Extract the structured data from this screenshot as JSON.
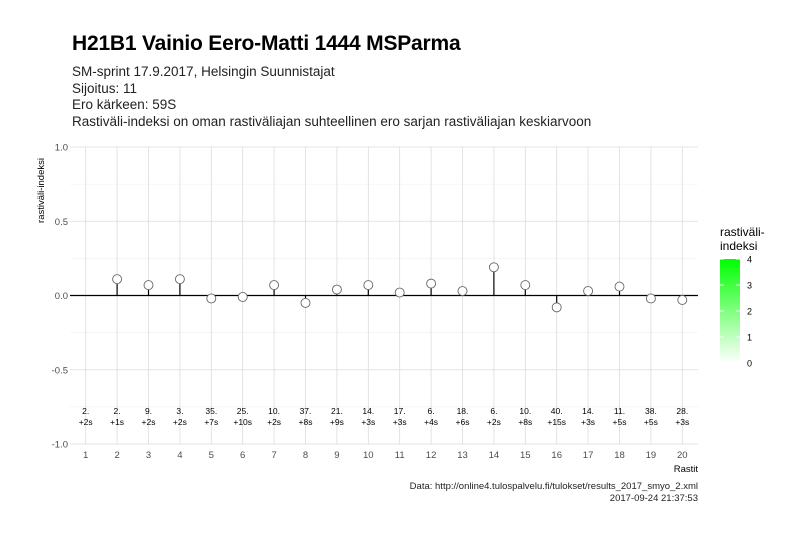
{
  "title": "H21B1 Vainio Eero-Matti 1444 MSParma",
  "subtitle_lines": [
    "SM-sprint 17.9.2017, Helsingin Suunnistajat",
    "Sijoitus: 11",
    "Ero kärkeen: 59S",
    "Rastiväli-indeksi on oman rastiväliajan suhteellinen ero sarjan rastiväliajan keskiarvoon"
  ],
  "caption": {
    "source": "Data: http://online4.tulospalvelu.fi/tulokset/results_2017_smyo_2.xml",
    "timestamp": "2017-09-24 21:37:53"
  },
  "chart_data": {
    "type": "scatter",
    "style": "lollipop",
    "xlabel": "Rastit",
    "ylabel": "rastiväli-indeksi",
    "x": [
      1,
      2,
      3,
      4,
      5,
      6,
      7,
      8,
      9,
      10,
      11,
      12,
      13,
      14,
      15,
      16,
      17,
      18,
      19,
      20
    ],
    "values": [
      null,
      0.11,
      0.07,
      0.11,
      -0.02,
      -0.01,
      0.07,
      -0.05,
      0.04,
      0.07,
      0.02,
      0.08,
      0.03,
      0.19,
      0.07,
      -0.08,
      0.03,
      0.06,
      -0.02,
      -0.03
    ],
    "point_labels": [
      [
        "2.",
        "+2s"
      ],
      [
        "2.",
        "+1s"
      ],
      [
        "9.",
        "+2s"
      ],
      [
        "3.",
        "+2s"
      ],
      [
        "35.",
        "+7s"
      ],
      [
        "25.",
        "+10s"
      ],
      [
        "10.",
        "+2s"
      ],
      [
        "37.",
        "+8s"
      ],
      [
        "21.",
        "+9s"
      ],
      [
        "14.",
        "+3s"
      ],
      [
        "17.",
        "+3s"
      ],
      [
        "6.",
        "+4s"
      ],
      [
        "18.",
        "+6s"
      ],
      [
        "6.",
        "+2s"
      ],
      [
        "10.",
        "+8s"
      ],
      [
        "40.",
        "+15s"
      ],
      [
        "14.",
        "+3s"
      ],
      [
        "11.",
        "+5s"
      ],
      [
        "38.",
        "+5s"
      ],
      [
        "28.",
        "+3s"
      ]
    ],
    "ylim": [
      -1.0,
      1.0
    ],
    "xlim": [
      0.5,
      20.5
    ],
    "yticks": [
      1.0,
      0.5,
      0.0,
      -0.5,
      -1.0
    ],
    "ytick_labels": [
      "1.0",
      "0.5",
      "0.0",
      "-0.5",
      "-1.0"
    ],
    "xtick_labels": [
      "1",
      "2",
      "3",
      "4",
      "5",
      "6",
      "7",
      "8",
      "9",
      "10",
      "11",
      "12",
      "13",
      "14",
      "15",
      "16",
      "17",
      "18",
      "19",
      "20"
    ],
    "grid": true,
    "legend": {
      "title_lines": [
        "rastiväli-",
        "indeksi"
      ],
      "type": "colorbar",
      "ticks": [
        "4",
        "3",
        "2",
        "1",
        "0"
      ],
      "colors": [
        "#ffffff",
        "#00ff00"
      ],
      "placement": "right"
    }
  }
}
